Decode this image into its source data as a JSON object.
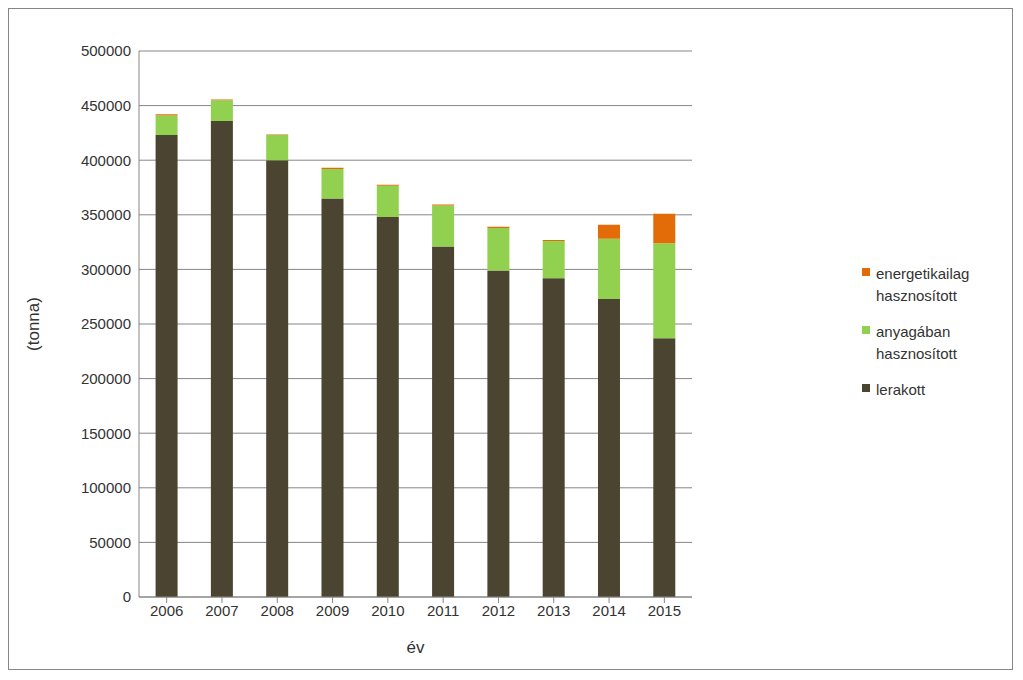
{
  "chart_data": {
    "type": "bar",
    "stacked": true,
    "x_label": "év",
    "y_label": "(tonna)",
    "categories": [
      "2006",
      "2007",
      "2008",
      "2009",
      "2010",
      "2011",
      "2012",
      "2013",
      "2014",
      "2015"
    ],
    "series": [
      {
        "name": "lerakott",
        "color": "#4b4430",
        "values": [
          423000,
          436000,
          400000,
          365000,
          348000,
          321000,
          299000,
          292000,
          273000,
          237000
        ]
      },
      {
        "name": "anyagában hasznosított",
        "color": "#92d050",
        "values": [
          18000,
          19000,
          23000,
          27000,
          28500,
          37500,
          39000,
          34000,
          55000,
          87000
        ]
      },
      {
        "name": "energetikailag hasznosított",
        "color": "#e36c09",
        "values": [
          1000,
          500,
          500,
          1000,
          1000,
          1000,
          1000,
          1000,
          13000,
          27000
        ]
      }
    ],
    "ylim": [
      0,
      500000
    ],
    "yticks": [
      0,
      50000,
      100000,
      150000,
      200000,
      250000,
      300000,
      350000,
      400000,
      450000,
      500000
    ],
    "grid": true,
    "legend": "right"
  }
}
